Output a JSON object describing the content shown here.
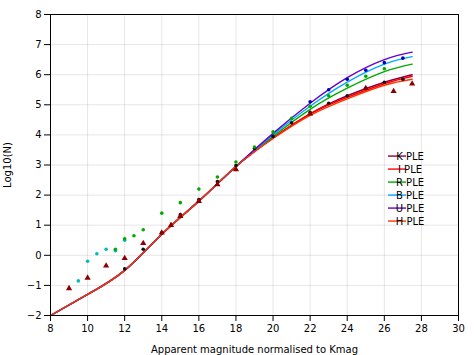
{
  "chart_data": {
    "type": "line",
    "xlabel": "Apparent magnitude normalised to Kmag",
    "ylabel": "Log10(N)",
    "xlim": [
      8,
      30
    ],
    "ylim": [
      -2,
      8
    ],
    "xticks": [
      8,
      10,
      12,
      14,
      16,
      18,
      20,
      22,
      24,
      26,
      28,
      30
    ],
    "yticks": [
      -2,
      -1,
      0,
      1,
      2,
      3,
      4,
      5,
      6,
      7,
      8
    ],
    "grid": true,
    "legend": "right",
    "series": [
      {
        "name": "K PLE",
        "type": "line",
        "color": "#8B0045",
        "x": [
          8,
          10,
          12,
          14,
          16,
          18,
          20,
          22,
          24,
          26,
          27.5
        ],
        "values": [
          -2.0,
          -1.3,
          -0.5,
          0.7,
          1.8,
          2.95,
          3.9,
          4.7,
          5.3,
          5.75,
          6.0
        ]
      },
      {
        "name": "I PLE",
        "type": "line",
        "color": "#FF0000",
        "x": [
          8,
          10,
          12,
          14,
          16,
          18,
          20,
          22,
          24,
          26,
          27.5
        ],
        "values": [
          -2.0,
          -1.3,
          -0.5,
          0.7,
          1.8,
          2.95,
          3.9,
          4.7,
          5.25,
          5.7,
          5.95
        ]
      },
      {
        "name": "R PLE",
        "type": "line",
        "color": "#00AA00",
        "x": [
          8,
          10,
          12,
          14,
          16,
          18,
          20,
          22,
          24,
          26,
          27.5
        ],
        "values": [
          -2.0,
          -1.3,
          -0.5,
          0.7,
          1.8,
          2.95,
          3.95,
          4.85,
          5.55,
          6.1,
          6.35
        ]
      },
      {
        "name": "B PLE",
        "type": "line",
        "color": "#00AAFF",
        "x": [
          8,
          10,
          12,
          14,
          16,
          18,
          20,
          22,
          24,
          26,
          27.5
        ],
        "values": [
          -2.0,
          -1.3,
          -0.5,
          0.7,
          1.8,
          2.95,
          4.0,
          4.95,
          5.75,
          6.35,
          6.6
        ]
      },
      {
        "name": "U PLE",
        "type": "line",
        "color": "#6600CC",
        "x": [
          8,
          10,
          12,
          14,
          16,
          18,
          20,
          22,
          24,
          26,
          27.5
        ],
        "values": [
          -2.0,
          -1.3,
          -0.5,
          0.7,
          1.8,
          2.95,
          4.05,
          5.05,
          5.9,
          6.5,
          6.75
        ]
      },
      {
        "name": "H PLE",
        "type": "line",
        "color": "#FF3300",
        "x": [
          8,
          10,
          12,
          14,
          16,
          18,
          20,
          22,
          24,
          26,
          27.5
        ],
        "values": [
          -2.0,
          -1.3,
          -0.5,
          0.7,
          1.8,
          2.95,
          3.88,
          4.65,
          5.2,
          5.65,
          5.85
        ]
      },
      {
        "type": "scatter",
        "marker": "circle",
        "color": "#111111",
        "x": [
          12,
          13,
          14,
          15,
          16,
          17,
          18,
          19,
          20,
          21,
          22,
          23,
          24,
          25,
          26,
          27
        ],
        "values": [
          -0.45,
          0.2,
          0.75,
          1.35,
          1.85,
          2.45,
          2.98,
          3.55,
          3.95,
          4.4,
          4.75,
          5.05,
          5.3,
          5.55,
          5.75,
          5.85
        ]
      },
      {
        "type": "scatter",
        "marker": "circle",
        "color": "#00BBBB",
        "x": [
          9.5,
          10.0,
          10.5,
          11.0,
          11.5,
          12.0
        ],
        "values": [
          -0.85,
          -0.2,
          0.05,
          0.2,
          0.15,
          0.5
        ]
      },
      {
        "type": "scatter",
        "marker": "circle",
        "color": "#00AA00",
        "x": [
          11.5,
          12.0,
          12.5,
          13.0,
          14.0,
          15.0,
          16.0,
          17.0,
          18.0,
          19.0,
          20.0,
          21.0,
          22.0,
          23.0,
          24.0,
          25.0,
          26.0
        ],
        "values": [
          0.2,
          0.55,
          0.65,
          0.85,
          1.4,
          1.75,
          2.2,
          2.6,
          3.1,
          3.6,
          4.1,
          4.55,
          4.95,
          5.3,
          5.65,
          5.95,
          6.2
        ]
      },
      {
        "type": "scatter",
        "marker": "triangle",
        "color": "#8B0000",
        "x": [
          9.0,
          10.0,
          11.0,
          12.0,
          13.0,
          14.0,
          14.5,
          15.0,
          16.0,
          17.0,
          18.0,
          22.0,
          25.0,
          26.5,
          27.5
        ],
        "values": [
          -1.1,
          -0.75,
          -0.35,
          -0.1,
          0.4,
          0.75,
          1.0,
          1.3,
          1.8,
          2.35,
          2.85,
          4.7,
          5.55,
          5.45,
          5.7
        ]
      },
      {
        "type": "scatter",
        "marker": "circle",
        "color": "#0000BB",
        "x": [
          22,
          23,
          24,
          25,
          26,
          27
        ],
        "values": [
          5.1,
          5.5,
          5.85,
          6.15,
          6.4,
          6.55
        ]
      }
    ]
  }
}
